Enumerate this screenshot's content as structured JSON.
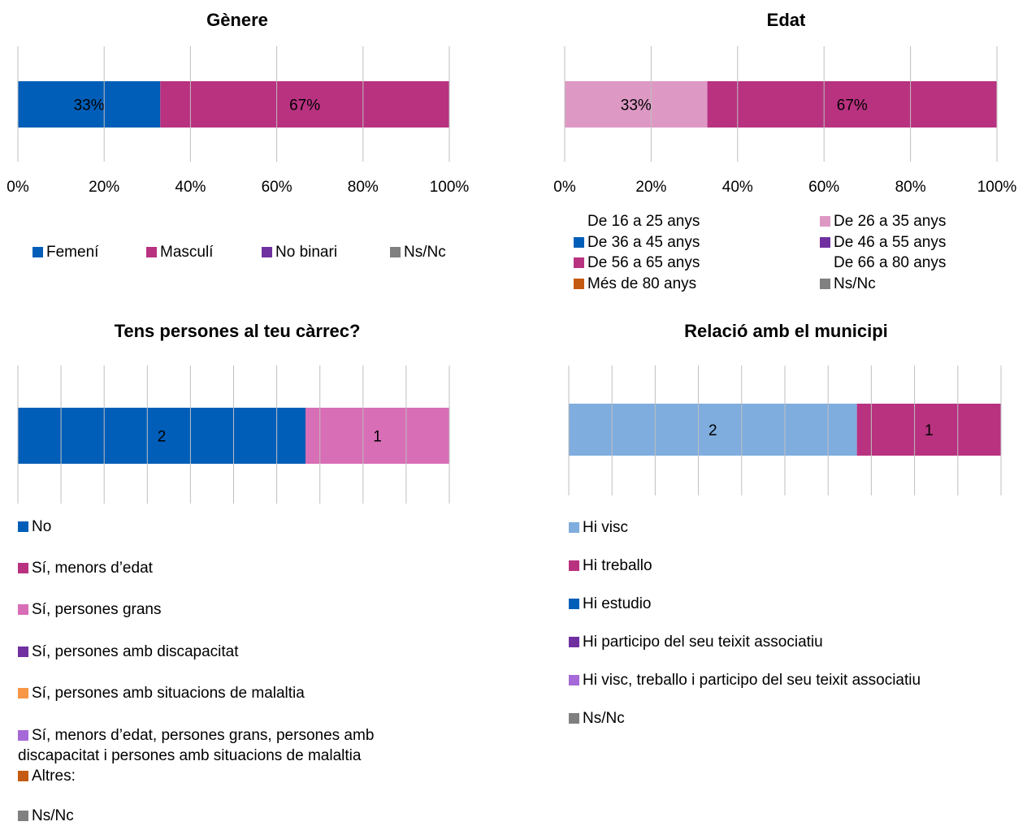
{
  "chart_data": [
    {
      "type": "bar",
      "orientation": "horizontal-stacked-100",
      "title": "Gènere",
      "x_ticks": [
        "0%",
        "20%",
        "40%",
        "60%",
        "80%",
        "100%"
      ],
      "xlim": [
        0,
        100
      ],
      "grid": true,
      "legend": "bottom",
      "series": [
        {
          "name": "Femení",
          "value": 33,
          "label": "33%",
          "color": "#005eb8"
        },
        {
          "name": "Masculí",
          "value": 67,
          "label": "67%",
          "color": "#b83280"
        },
        {
          "name": "No binari",
          "value": 0,
          "label": "",
          "color": "#7030a0"
        },
        {
          "name": "Ns/Nc",
          "value": 0,
          "label": "",
          "color": "#808080"
        }
      ]
    },
    {
      "type": "bar",
      "orientation": "horizontal-stacked-100",
      "title": "Edat",
      "x_ticks": [
        "0%",
        "20%",
        "40%",
        "60%",
        "80%",
        "100%"
      ],
      "xlim": [
        0,
        100
      ],
      "grid": true,
      "legend": "bottom",
      "series": [
        {
          "name": "De 16 a 25 anys",
          "value": 0,
          "label": "",
          "color": ""
        },
        {
          "name": "De 26 a 35 anys",
          "value": 33,
          "label": "33%",
          "color": "#dd99c4"
        },
        {
          "name": "De 36 a 45 anys",
          "value": 0,
          "label": "",
          "color": "#005eb8"
        },
        {
          "name": "De 46 a 55 anys",
          "value": 0,
          "label": "",
          "color": "#7030a0"
        },
        {
          "name": "De 56 a 65 anys",
          "value": 67,
          "label": "67%",
          "color": "#b83280"
        },
        {
          "name": "De 66 a 80 anys",
          "value": 0,
          "label": "",
          "color": ""
        },
        {
          "name": "Més de 80 anys",
          "value": 0,
          "label": "",
          "color": "#c55a11"
        },
        {
          "name": "Ns/Nc",
          "value": 0,
          "label": "",
          "color": "#808080"
        }
      ]
    },
    {
      "type": "bar",
      "orientation": "horizontal-stacked",
      "title": "Tens persones al teu càrrec?",
      "xlim": [
        0,
        3
      ],
      "grid": true,
      "legend": "bottom",
      "series": [
        {
          "name": "No",
          "value": 2,
          "label": "2",
          "color": "#005eb8"
        },
        {
          "name": "Sí, menors d’edat",
          "value": 0,
          "label": "",
          "color": "#b83280"
        },
        {
          "name": "Sí, persones grans",
          "value": 1,
          "label": "1",
          "color": "#d86eb5"
        },
        {
          "name": "Sí, persones amb discapacitat",
          "value": 0,
          "label": "",
          "color": "#7030a0"
        },
        {
          "name": "Sí, persones amb situacions de malaltia",
          "value": 0,
          "label": "",
          "color": "#f79646"
        },
        {
          "name": "Sí, menors d’edat, persones grans, persones amb discapacitat i persones amb situacions de malaltia",
          "value": 0,
          "label": "",
          "color": "#a569d8"
        },
        {
          "name": "Altres:",
          "value": 0,
          "label": "",
          "color": "#c55a11"
        },
        {
          "name": "Ns/Nc",
          "value": 0,
          "label": "",
          "color": "#808080"
        }
      ]
    },
    {
      "type": "bar",
      "orientation": "horizontal-stacked",
      "title": "Relació amb el municipi",
      "xlim": [
        0,
        3
      ],
      "grid": true,
      "legend": "bottom",
      "series": [
        {
          "name": "Hi visc",
          "value": 2,
          "label": "2",
          "color": "#7fadde"
        },
        {
          "name": "Hi treballo",
          "value": 1,
          "label": "1",
          "color": "#b83280"
        },
        {
          "name": "Hi estudio",
          "value": 0,
          "label": "",
          "color": "#005eb8"
        },
        {
          "name": "Hi participo del seu teixit associatiu",
          "value": 0,
          "label": "",
          "color": "#7030a0"
        },
        {
          "name": "Hi visc, treballo i participo del seu teixit associatiu",
          "value": 0,
          "label": "",
          "color": "#a569d8"
        },
        {
          "name": "Ns/Nc",
          "value": 0,
          "label": "",
          "color": "#808080"
        }
      ]
    }
  ]
}
